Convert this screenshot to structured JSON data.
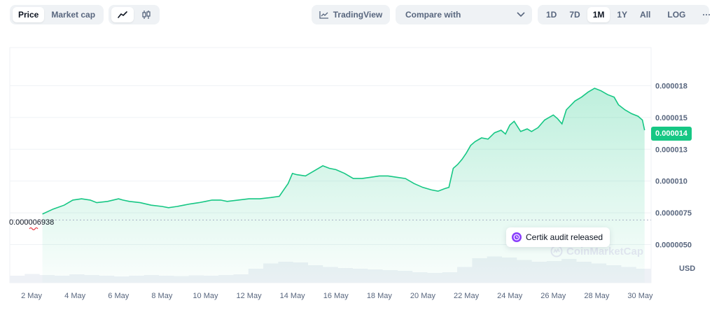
{
  "toolbar": {
    "type_tabs": [
      "Price",
      "Market cap"
    ],
    "active_type": "Price",
    "tradingview_label": "TradingView",
    "compare_label": "Compare with",
    "ranges": [
      "1D",
      "7D",
      "1M",
      "1Y",
      "All"
    ],
    "active_range": "1M",
    "log_label": "LOG",
    "more_label": "···"
  },
  "chart_data": {
    "type": "area",
    "series_color": "#16c784",
    "x_ticks": [
      "2 May",
      "4 May",
      "6 May",
      "8 May",
      "10 May",
      "12 May",
      "14 May",
      "16 May",
      "18 May",
      "20 May",
      "22 May",
      "24 May",
      "26 May",
      "28 May",
      "30 May"
    ],
    "y_ticks": [
      "0.0000050",
      "0.0000075",
      "0.000010",
      "0.000013",
      "0.000015",
      "0.000018"
    ],
    "y_tick_values": [
      5e-06,
      7.5e-06,
      1e-05,
      1.25e-05,
      1.5e-05,
      1.75e-05
    ],
    "ylim": [
      2e-06,
      2.05e-05
    ],
    "xlim": [
      1,
      30.5
    ],
    "x": [
      2.5,
      3.0,
      3.5,
      3.9,
      4.3,
      4.7,
      5.0,
      5.5,
      6.0,
      6.2,
      6.5,
      7.0,
      7.5,
      8.0,
      8.3,
      8.7,
      9.0,
      9.3,
      9.7,
      10.0,
      10.3,
      10.7,
      11.0,
      11.5,
      12.0,
      12.5,
      13.0,
      13.4,
      13.6,
      13.8,
      14.0,
      14.2,
      14.6,
      15.0,
      15.4,
      15.7,
      16.0,
      16.4,
      16.8,
      17.2,
      17.6,
      18.0,
      18.4,
      18.8,
      19.2,
      19.6,
      20.0,
      20.4,
      20.7,
      21.0,
      21.2,
      21.4,
      21.6,
      21.8,
      22.0,
      22.2,
      22.4,
      22.7,
      23.0,
      23.3,
      23.6,
      23.8,
      24.0,
      24.2,
      24.5,
      24.8,
      25.0,
      25.3,
      25.6,
      26.0,
      26.2,
      26.4,
      26.6,
      27.0,
      27.3,
      27.6,
      27.9,
      28.2,
      28.5,
      28.8,
      29.0,
      29.3,
      29.6,
      29.9,
      30.1,
      30.2
    ],
    "values": [
      7.4e-06,
      7.8e-06,
      8.1e-06,
      8.5e-06,
      8.6e-06,
      8.5e-06,
      8.3e-06,
      8.4e-06,
      8.6e-06,
      8.5e-06,
      8.4e-06,
      8.3e-06,
      8.1e-06,
      8e-06,
      7.9e-06,
      8e-06,
      8.1e-06,
      8.2e-06,
      8.3e-06,
      8.4e-06,
      8.5e-06,
      8.5e-06,
      8.4e-06,
      8.5e-06,
      8.6e-06,
      8.6e-06,
      8.7e-06,
      8.8e-06,
      9.3e-06,
      9.8e-06,
      1.06e-05,
      1.05e-05,
      1.04e-05,
      1.08e-05,
      1.12e-05,
      1.1e-05,
      1.09e-05,
      1.06e-05,
      1.02e-05,
      1.02e-05,
      1.03e-05,
      1.04e-05,
      1.04e-05,
      1.03e-05,
      1.02e-05,
      9.8e-06,
      9.5e-06,
      9.3e-06,
      9.2e-06,
      9.4e-06,
      9.5e-06,
      1.1e-05,
      1.13e-05,
      1.17e-05,
      1.22e-05,
      1.28e-05,
      1.31e-05,
      1.34e-05,
      1.33e-05,
      1.38e-05,
      1.4e-05,
      1.37e-05,
      1.44e-05,
      1.47e-05,
      1.39e-05,
      1.41e-05,
      1.39e-05,
      1.42e-05,
      1.48e-05,
      1.52e-05,
      1.49e-05,
      1.45e-05,
      1.56e-05,
      1.63e-05,
      1.66e-05,
      1.7e-05,
      1.73e-05,
      1.71e-05,
      1.68e-05,
      1.66e-05,
      1.6e-05,
      1.56e-05,
      1.53e-05,
      1.51e-05,
      1.48e-05,
      1.4e-05
    ],
    "current_price_label": "0.000014",
    "start_price_label": "0.000006938",
    "start_price_value": 6.938e-06,
    "annotation": "Certik audit released",
    "unit_label": "USD",
    "watermark": "CoinMarketCap",
    "volume_profile": [
      0.2,
      0.25,
      0.22,
      0.2,
      0.24,
      0.22,
      0.2,
      0.18,
      0.2,
      0.22,
      0.2,
      0.19,
      0.21,
      0.2,
      0.22,
      0.24,
      0.4,
      0.55,
      0.6,
      0.58,
      0.5,
      0.45,
      0.42,
      0.4,
      0.38,
      0.36,
      0.34,
      0.3,
      0.28,
      0.3,
      0.45,
      0.7,
      0.75,
      0.72,
      0.65,
      0.6,
      0.62,
      0.68,
      0.6,
      0.55,
      0.5,
      0.45,
      0.4
    ]
  }
}
